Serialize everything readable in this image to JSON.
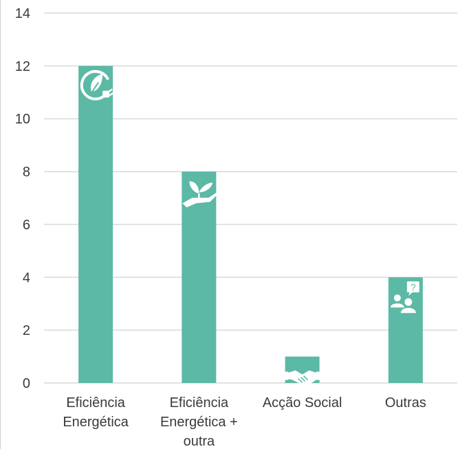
{
  "chart_data": {
    "type": "bar",
    "categories": [
      [
        "Eficiência",
        "Energética"
      ],
      [
        "Eficiência",
        "Energética +",
        "outra"
      ],
      [
        "Acção Social"
      ],
      [
        "Outras"
      ]
    ],
    "values": [
      12,
      8,
      1,
      4
    ],
    "icons": [
      "leaf-plug-icon",
      "plant-in-hand-icon",
      "handshake-icon",
      "people-question-icon"
    ],
    "ylim": [
      0,
      14
    ],
    "yticks": [
      0,
      2,
      4,
      6,
      8,
      10,
      12,
      14
    ],
    "grid": true,
    "bar_color": "#5bb9a6",
    "grid_color": "#d9d9d9"
  }
}
